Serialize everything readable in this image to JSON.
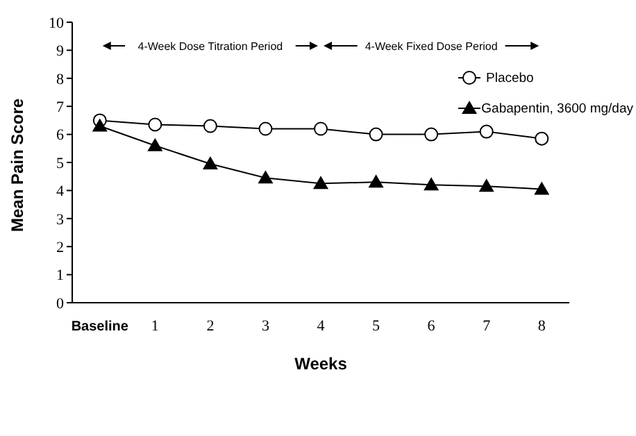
{
  "chart_data": {
    "type": "line",
    "xlabel": "Weeks",
    "ylabel": "Mean Pain Score",
    "categories": [
      "Baseline",
      "1",
      "2",
      "3",
      "4",
      "5",
      "6",
      "7",
      "8"
    ],
    "series": [
      {
        "name": "Placebo",
        "color": "#000000",
        "marker": "circle",
        "values": [
          6.5,
          6.35,
          6.3,
          6.2,
          6.2,
          6.0,
          6.0,
          6.1,
          5.85
        ]
      },
      {
        "name": "Gabapentin, 3600 mg/day",
        "color": "#000000",
        "marker": "triangle",
        "values": [
          6.3,
          5.6,
          4.95,
          4.45,
          4.25,
          4.3,
          4.2,
          4.15,
          4.05
        ]
      }
    ],
    "ylim": [
      0,
      10
    ],
    "yticks": [
      0,
      1,
      2,
      3,
      4,
      5,
      6,
      7,
      8,
      9,
      10
    ],
    "legend": "top right",
    "annotations": [
      "4-Week Dose Titration Period",
      "4-Week Fixed Dose Period"
    ]
  }
}
